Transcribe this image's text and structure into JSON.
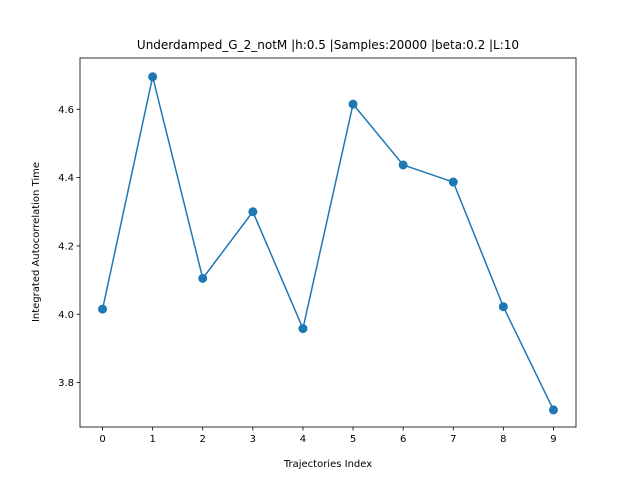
{
  "chart_data": {
    "type": "line",
    "title": "Underdamped_G_2_notM |h:0.5 |Samples:20000 |beta:0.2 |L:10",
    "xlabel": "Trajectories Index",
    "ylabel": "Integrated Autocorrelation Time",
    "x": [
      0,
      1,
      2,
      3,
      4,
      5,
      6,
      7,
      8,
      9
    ],
    "y": [
      4.015,
      4.695,
      4.105,
      4.3,
      3.958,
      4.615,
      4.437,
      4.387,
      4.022,
      3.72
    ],
    "xlim": [
      -0.45,
      9.45
    ],
    "ylim": [
      3.67,
      4.75
    ],
    "xticks": [
      "0",
      "1",
      "2",
      "3",
      "4",
      "5",
      "6",
      "7",
      "8",
      "9"
    ],
    "yticks": [
      "3.8",
      "4.0",
      "4.2",
      "4.4",
      "4.6"
    ],
    "ytick_values": [
      3.8,
      4.0,
      4.2,
      4.4,
      4.6
    ],
    "series_color": "#1f77b4",
    "marker": "circle",
    "grid": false,
    "legend": "none"
  }
}
